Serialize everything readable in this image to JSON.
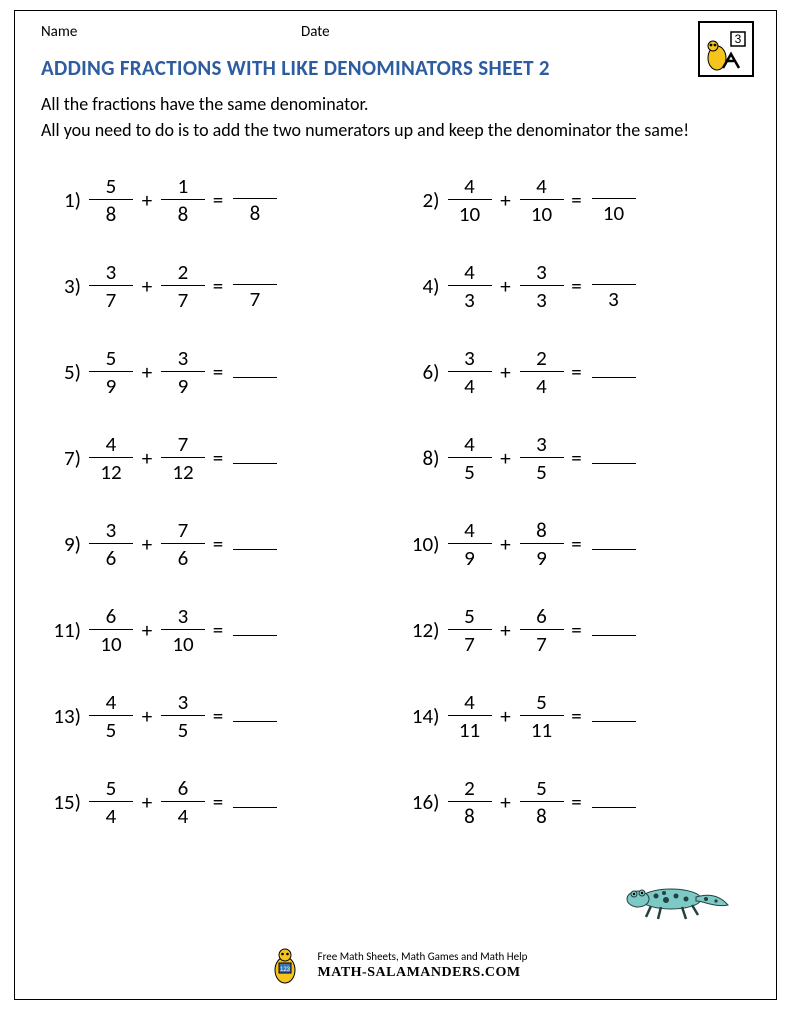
{
  "header": {
    "name_label": "Name",
    "date_label": "Date"
  },
  "badge_number": "3",
  "title": "ADDING FRACTIONS WITH LIKE DENOMINATORS SHEET 2",
  "instructions": "All the fractions have the same denominator.\nAll you need to do is to add the two numerators up and keep the denominator the same!",
  "colors": {
    "title": "#2d5da0",
    "text": "#000000",
    "salamander_body": "#7cc9c5",
    "salamander_dark": "#24403f",
    "badge_yellow": "#f5c51e"
  },
  "problems": [
    {
      "n": 1,
      "a_num": 5,
      "a_den": 8,
      "b_num": 1,
      "b_den": 8,
      "show_ans_den": true,
      "ans_den": 8
    },
    {
      "n": 2,
      "a_num": 4,
      "a_den": 10,
      "b_num": 4,
      "b_den": 10,
      "show_ans_den": true,
      "ans_den": 10
    },
    {
      "n": 3,
      "a_num": 3,
      "a_den": 7,
      "b_num": 2,
      "b_den": 7,
      "show_ans_den": true,
      "ans_den": 7
    },
    {
      "n": 4,
      "a_num": 4,
      "a_den": 3,
      "b_num": 3,
      "b_den": 3,
      "show_ans_den": true,
      "ans_den": 3
    },
    {
      "n": 5,
      "a_num": 5,
      "a_den": 9,
      "b_num": 3,
      "b_den": 9,
      "show_ans_den": false
    },
    {
      "n": 6,
      "a_num": 3,
      "a_den": 4,
      "b_num": 2,
      "b_den": 4,
      "show_ans_den": false
    },
    {
      "n": 7,
      "a_num": 4,
      "a_den": 12,
      "b_num": 7,
      "b_den": 12,
      "show_ans_den": false
    },
    {
      "n": 8,
      "a_num": 4,
      "a_den": 5,
      "b_num": 3,
      "b_den": 5,
      "show_ans_den": false
    },
    {
      "n": 9,
      "a_num": 3,
      "a_den": 6,
      "b_num": 7,
      "b_den": 6,
      "show_ans_den": false
    },
    {
      "n": 10,
      "a_num": 4,
      "a_den": 9,
      "b_num": 8,
      "b_den": 9,
      "show_ans_den": false
    },
    {
      "n": 11,
      "a_num": 6,
      "a_den": 10,
      "b_num": 3,
      "b_den": 10,
      "show_ans_den": false
    },
    {
      "n": 12,
      "a_num": 5,
      "a_den": 7,
      "b_num": 6,
      "b_den": 7,
      "show_ans_den": false
    },
    {
      "n": 13,
      "a_num": 4,
      "a_den": 5,
      "b_num": 3,
      "b_den": 5,
      "show_ans_den": false
    },
    {
      "n": 14,
      "a_num": 4,
      "a_den": 11,
      "b_num": 5,
      "b_den": 11,
      "show_ans_den": false
    },
    {
      "n": 15,
      "a_num": 5,
      "a_den": 4,
      "b_num": 6,
      "b_den": 4,
      "show_ans_den": false
    },
    {
      "n": 16,
      "a_num": 2,
      "a_den": 8,
      "b_num": 5,
      "b_den": 8,
      "show_ans_den": false
    }
  ],
  "footer": {
    "line1": "Free Math Sheets, Math Games and Math Help",
    "site": "MATH-SALAMANDERS.COM"
  }
}
